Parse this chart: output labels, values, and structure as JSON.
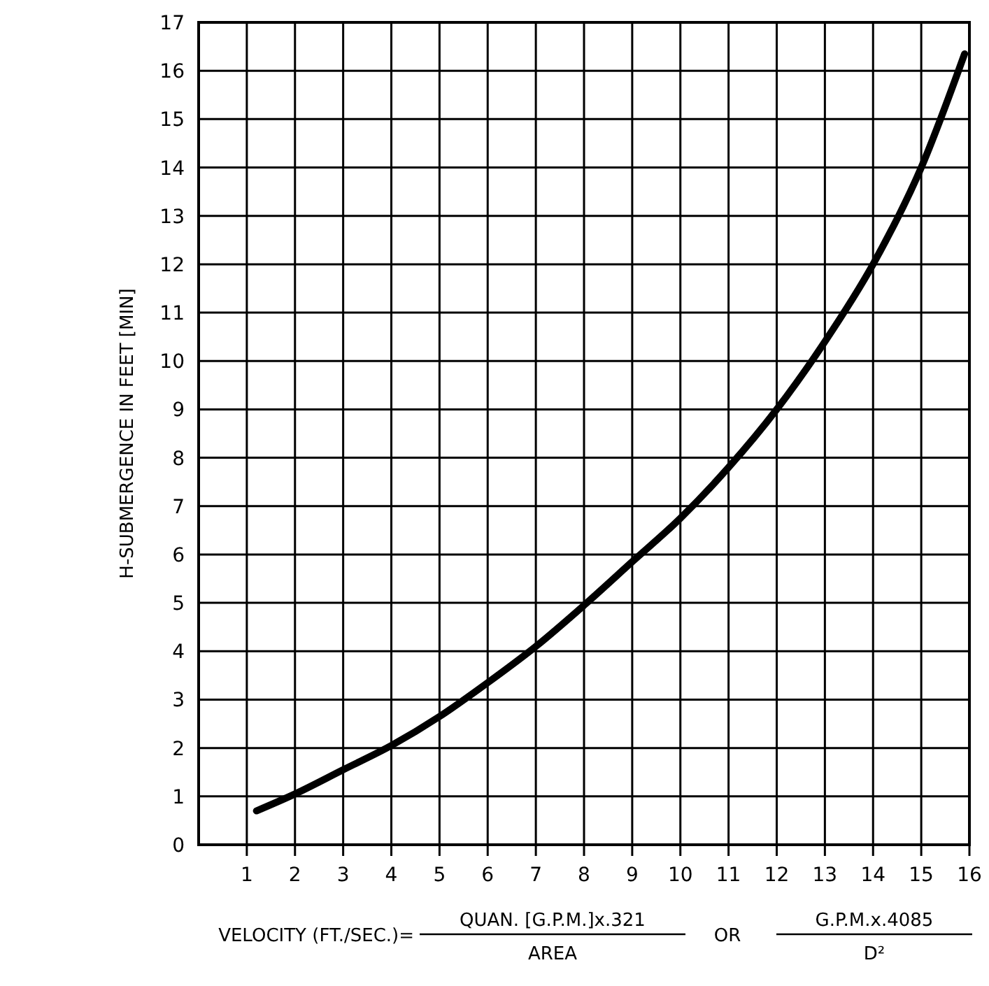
{
  "chart_data": {
    "type": "line",
    "ylabel": "H-SUBMERGENCE IN FEET [MIN]",
    "xlabel": "VELOCITY (FT./SEC.)=",
    "annotations": [
      "QUAN. [G.P.M.]x.321",
      "AREA",
      "OR",
      "G.P.M.x.4085",
      "D²"
    ],
    "x": [
      1.2,
      2,
      3,
      4,
      5,
      6,
      7,
      8,
      9,
      10,
      11,
      12,
      13,
      14,
      15,
      15.9
    ],
    "series": [
      {
        "color": "#000000",
        "values": [
          0.7,
          1.05,
          1.55,
          2.05,
          2.65,
          3.35,
          4.1,
          4.95,
          5.85,
          6.75,
          7.8,
          9.0,
          10.4,
          12.0,
          14.0,
          16.35
        ]
      }
    ],
    "xlim": [
      0,
      16
    ],
    "xticks": [
      1,
      2,
      3,
      4,
      5,
      6,
      7,
      8,
      9,
      10,
      11,
      12,
      13,
      14,
      15,
      16
    ],
    "ylim": [
      0,
      17
    ],
    "yticks": [
      0,
      1,
      2,
      3,
      4,
      5,
      6,
      7,
      8,
      9,
      10,
      11,
      12,
      13,
      14,
      15,
      16,
      17
    ],
    "grid": true,
    "marker": "none",
    "line_style": "solid"
  }
}
